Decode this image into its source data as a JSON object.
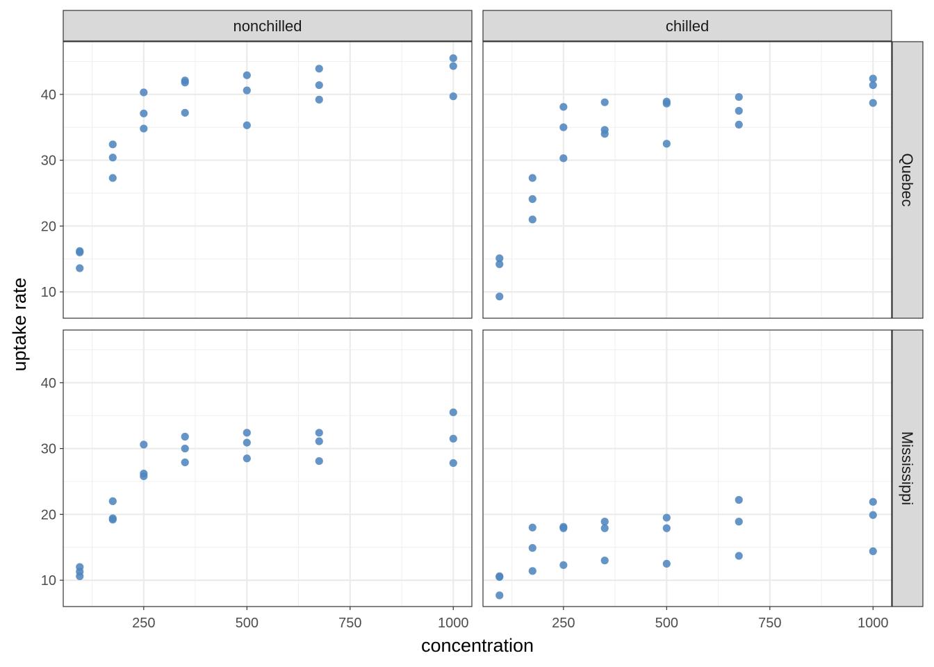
{
  "chart_data": {
    "type": "scatter",
    "xlabel": "concentration",
    "ylabel": "uptake rate",
    "xlim": [
      55,
      1045
    ],
    "ylim": [
      6,
      48
    ],
    "x_ticks": [
      250,
      500,
      750,
      1000
    ],
    "x_minor": [
      125,
      375,
      625,
      875
    ],
    "y_ticks": [
      10,
      20,
      30,
      40
    ],
    "y_minor": [
      15,
      25,
      35,
      45
    ],
    "grid": true,
    "point_color": "#4F86BE",
    "col_facets": [
      "nonchilled",
      "chilled"
    ],
    "row_facets": [
      "Quebec",
      "Mississippi"
    ],
    "panels": [
      {
        "row": "Quebec",
        "col": "nonchilled",
        "points": [
          [
            95,
            16.0
          ],
          [
            95,
            16.2
          ],
          [
            95,
            13.6
          ],
          [
            175,
            30.4
          ],
          [
            175,
            27.3
          ],
          [
            175,
            32.4
          ],
          [
            250,
            40.3
          ],
          [
            250,
            37.1
          ],
          [
            250,
            34.8
          ],
          [
            350,
            42.1
          ],
          [
            350,
            41.8
          ],
          [
            350,
            37.2
          ],
          [
            500,
            42.9
          ],
          [
            500,
            40.6
          ],
          [
            500,
            35.3
          ],
          [
            675,
            43.9
          ],
          [
            675,
            41.4
          ],
          [
            675,
            39.2
          ],
          [
            1000,
            45.5
          ],
          [
            1000,
            44.3
          ],
          [
            1000,
            39.7
          ]
        ]
      },
      {
        "row": "Quebec",
        "col": "chilled",
        "points": [
          [
            95,
            14.2
          ],
          [
            95,
            9.3
          ],
          [
            95,
            15.1
          ],
          [
            175,
            24.1
          ],
          [
            175,
            27.3
          ],
          [
            175,
            21.0
          ],
          [
            250,
            30.3
          ],
          [
            250,
            35.0
          ],
          [
            250,
            38.1
          ],
          [
            350,
            34.6
          ],
          [
            350,
            38.8
          ],
          [
            350,
            34.0
          ],
          [
            500,
            32.5
          ],
          [
            500,
            38.6
          ],
          [
            500,
            38.9
          ],
          [
            675,
            35.4
          ],
          [
            675,
            37.5
          ],
          [
            675,
            39.6
          ],
          [
            1000,
            38.7
          ],
          [
            1000,
            42.4
          ],
          [
            1000,
            41.4
          ]
        ]
      },
      {
        "row": "Mississippi",
        "col": "nonchilled",
        "points": [
          [
            95,
            10.6
          ],
          [
            95,
            12.0
          ],
          [
            95,
            11.3
          ],
          [
            175,
            19.2
          ],
          [
            175,
            22.0
          ],
          [
            175,
            19.4
          ],
          [
            250,
            26.2
          ],
          [
            250,
            30.6
          ],
          [
            250,
            25.8
          ],
          [
            350,
            30.0
          ],
          [
            350,
            31.8
          ],
          [
            350,
            27.9
          ],
          [
            500,
            30.9
          ],
          [
            500,
            32.4
          ],
          [
            500,
            28.5
          ],
          [
            675,
            32.4
          ],
          [
            675,
            31.1
          ],
          [
            675,
            28.1
          ],
          [
            1000,
            35.5
          ],
          [
            1000,
            31.5
          ],
          [
            1000,
            27.8
          ]
        ]
      },
      {
        "row": "Mississippi",
        "col": "chilled",
        "points": [
          [
            95,
            10.5
          ],
          [
            95,
            7.7
          ],
          [
            95,
            10.6
          ],
          [
            175,
            14.9
          ],
          [
            175,
            11.4
          ],
          [
            175,
            18.0
          ],
          [
            250,
            18.1
          ],
          [
            250,
            12.3
          ],
          [
            250,
            17.9
          ],
          [
            350,
            18.9
          ],
          [
            350,
            13.0
          ],
          [
            350,
            17.9
          ],
          [
            500,
            19.5
          ],
          [
            500,
            12.5
          ],
          [
            500,
            17.9
          ],
          [
            675,
            22.2
          ],
          [
            675,
            13.7
          ],
          [
            675,
            18.9
          ],
          [
            1000,
            21.9
          ],
          [
            1000,
            14.4
          ],
          [
            1000,
            19.9
          ]
        ]
      }
    ]
  }
}
